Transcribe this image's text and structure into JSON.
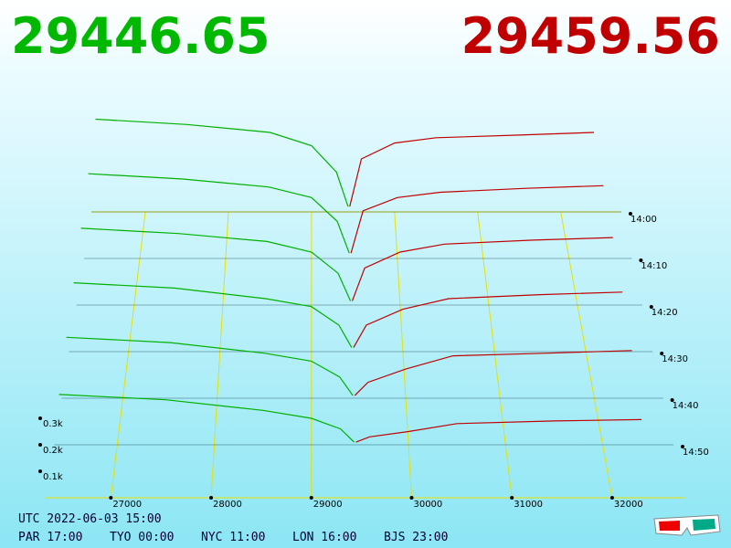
{
  "header": {
    "bid_price": "29446.65",
    "ask_price": "29459.56"
  },
  "chart_data": {
    "type": "depth3d",
    "xlim": [
      26350,
      32730
    ],
    "xticks": [
      27000,
      28000,
      29000,
      30000,
      31000,
      32000
    ],
    "zticks": [
      {
        "value": 100,
        "label": "0.1k"
      },
      {
        "value": 200,
        "label": "0.2k"
      },
      {
        "value": 300,
        "label": "0.3k"
      }
    ],
    "bid_prices": [
      26400,
      27500,
      28500,
      29000,
      29300,
      29440
    ],
    "ask_prices": [
      29460,
      29600,
      30000,
      30500,
      31500,
      32400
    ],
    "bid_color": "#00b000",
    "ask_color": "#c00000",
    "snapshots": [
      {
        "time": "14:00",
        "bids": [
          350,
          330,
          300,
          250,
          150,
          20
        ],
        "asks": [
          20,
          200,
          260,
          280,
          290,
          300
        ]
      },
      {
        "time": "14:10",
        "bids": [
          320,
          300,
          270,
          230,
          140,
          20
        ],
        "asks": [
          20,
          180,
          230,
          250,
          265,
          275
        ]
      },
      {
        "time": "14:20",
        "bids": [
          290,
          270,
          240,
          200,
          120,
          15
        ],
        "asks": [
          15,
          140,
          200,
          230,
          245,
          255
        ]
      },
      {
        "time": "14:30",
        "bids": [
          260,
          240,
          200,
          170,
          100,
          15
        ],
        "asks": [
          15,
          100,
          160,
          200,
          215,
          225
        ]
      },
      {
        "time": "14:40",
        "bids": [
          230,
          210,
          170,
          140,
          80,
          10
        ],
        "asks": [
          10,
          60,
          110,
          160,
          170,
          180
        ]
      },
      {
        "time": "14:50",
        "bids": [
          190,
          170,
          130,
          100,
          60,
          10
        ],
        "asks": [
          10,
          30,
          50,
          80,
          90,
          95
        ]
      }
    ]
  },
  "footer": {
    "utc": "UTC 2022-06-03 15:00",
    "cities": [
      "PAR 17:00",
      "TYO 00:00",
      "NYC 11:00",
      "LON 16:00",
      "BJS 23:00"
    ]
  }
}
